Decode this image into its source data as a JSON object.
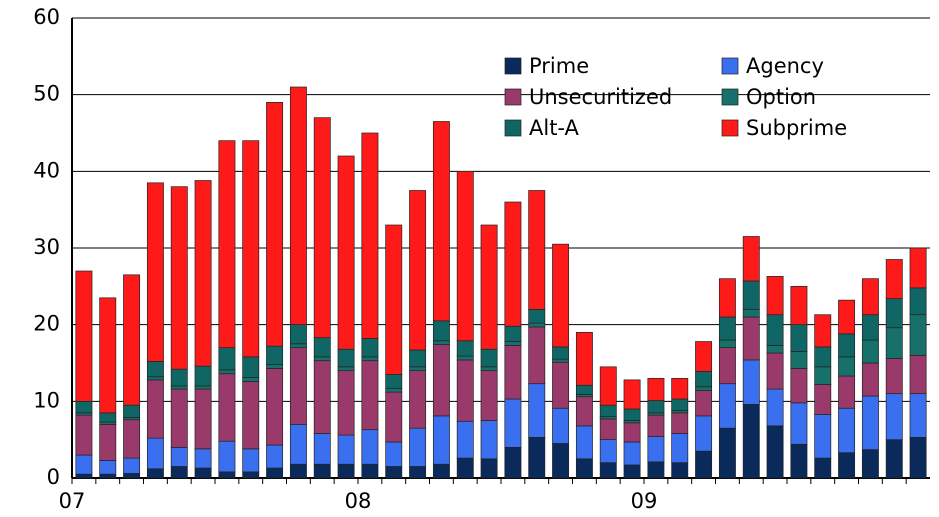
{
  "chart_data": {
    "type": "stacked-bar",
    "categories": [
      "07",
      null,
      null,
      null,
      null,
      null,
      null,
      null,
      null,
      null,
      null,
      null,
      "08",
      null,
      null,
      null,
      null,
      null,
      null,
      null,
      null,
      null,
      null,
      null,
      "09",
      null,
      null,
      null,
      null,
      null,
      null,
      null,
      null,
      null,
      null,
      null
    ],
    "series": [
      {
        "name": "Prime",
        "color": "#0b2a5c",
        "values": [
          0.5,
          0.5,
          0.6,
          1.2,
          1.5,
          1.3,
          0.8,
          0.8,
          1.3,
          1.8,
          1.8,
          1.8,
          1.8,
          1.5,
          1.5,
          1.8,
          2.6,
          2.5,
          4,
          5.3,
          4.5,
          2.5,
          2,
          1.7,
          2.1,
          2,
          3.5,
          6.5,
          9.6,
          6.8,
          4.4,
          2.6,
          3.3,
          3.7,
          5,
          5.3
        ]
      },
      {
        "name": "Agency",
        "color": "#3a6ff0",
        "values": [
          2.5,
          1.8,
          2,
          4,
          2.5,
          2.5,
          4,
          3,
          3,
          5.2,
          4,
          3.8,
          4.5,
          3.2,
          5,
          6.3,
          4.8,
          5,
          6.3,
          7,
          4.6,
          4.3,
          3,
          3,
          3.3,
          3.8,
          4.6,
          5.8,
          5.8,
          4.8,
          5.4,
          5.7,
          5.8,
          7,
          6,
          5.7
        ]
      },
      {
        "name": "Unsecuritized",
        "color": "#9a3a6a",
        "values": [
          5.2,
          4.7,
          5,
          7.6,
          7.6,
          7.8,
          8.8,
          8.8,
          10,
          10,
          9.5,
          8.4,
          9,
          6.5,
          7.5,
          9.3,
          8,
          6.5,
          7,
          7.4,
          6,
          3.8,
          2.7,
          2.5,
          2.8,
          2.7,
          3.3,
          4.7,
          5.6,
          4.7,
          4.5,
          3.9,
          4.2,
          4.3,
          4.6,
          5
        ]
      },
      {
        "name": "Option",
        "color": "#17706a",
        "values": [
          0.3,
          0.3,
          0.3,
          0.4,
          0.4,
          0.4,
          0.5,
          0.5,
          0.5,
          0.5,
          0.5,
          0.5,
          0.5,
          0.5,
          0.5,
          0.5,
          0.5,
          0.5,
          0.5,
          0.5,
          0.4,
          0.3,
          0.3,
          0.3,
          0.3,
          0.3,
          0.5,
          1,
          1,
          1,
          2.2,
          2.3,
          2.5,
          3,
          4,
          5.3
        ]
      },
      {
        "name": "Alt-A",
        "color": "#0f6664",
        "values": [
          1.5,
          1.2,
          1.6,
          2,
          2.2,
          2.6,
          2.9,
          2.7,
          2.4,
          2.5,
          2.5,
          2.3,
          2.4,
          1.8,
          2.2,
          2.6,
          2,
          2.3,
          2,
          1.8,
          1.6,
          1.2,
          1.5,
          1.5,
          1.6,
          1.5,
          2,
          3,
          3.7,
          4,
          3.5,
          2.6,
          3,
          3.3,
          3.8,
          3.5
        ]
      },
      {
        "name": "Subprime",
        "color": "#ff1a1a",
        "values": [
          17,
          15,
          17,
          23.3,
          23.8,
          24.2,
          27,
          28.2,
          31.8,
          31,
          28.7,
          25.2,
          26.8,
          19.5,
          20.8,
          26,
          22.1,
          16.2,
          16.2,
          15.5,
          13.4,
          6.9,
          5,
          3.8,
          2.9,
          2.7,
          3.9,
          5,
          5.8,
          5,
          5,
          4.2,
          4.4,
          4.7,
          5.1,
          5.2
        ]
      }
    ],
    "ylim": [
      0,
      60
    ],
    "yticks": [
      0,
      10,
      20,
      30,
      40,
      50,
      60
    ],
    "grid": true
  }
}
